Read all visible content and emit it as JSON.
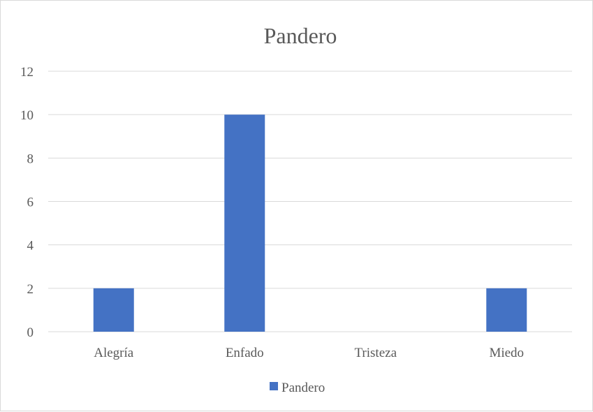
{
  "chart_data": {
    "type": "bar",
    "title": "Pandero",
    "categories": [
      "Alegría",
      "Enfado",
      "Tristeza",
      "Miedo"
    ],
    "series": [
      {
        "name": "Pandero",
        "values": [
          2,
          10,
          0,
          2
        ],
        "color": "#4472c4"
      }
    ],
    "xlabel": "",
    "ylabel": "",
    "ylim": [
      0,
      12
    ],
    "yticks": [
      0,
      2,
      4,
      6,
      8,
      10,
      12
    ],
    "grid": true,
    "legend": "bottom",
    "gridline_color": "#d9d9d9",
    "text_color": "#595959"
  }
}
